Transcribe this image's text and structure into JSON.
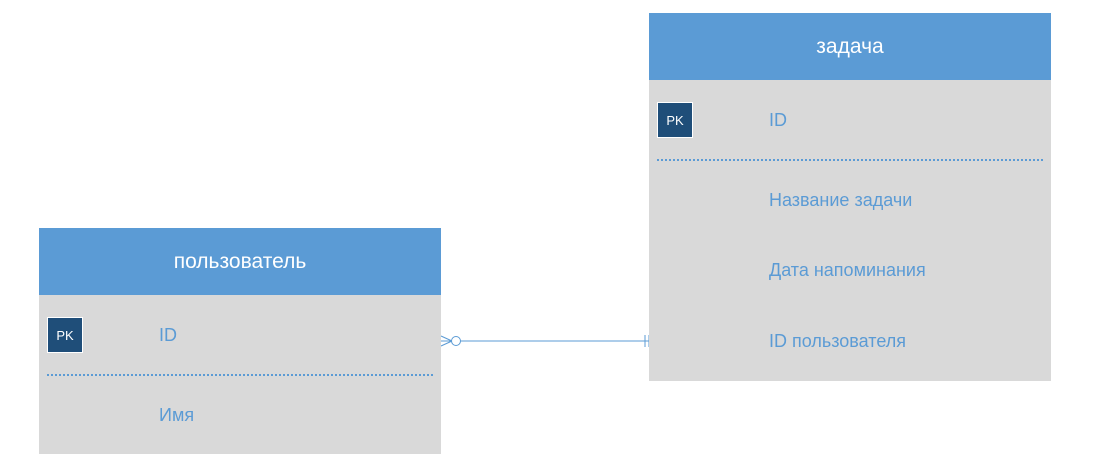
{
  "entities": {
    "user": {
      "title": "пользователь",
      "pk_label": "PK",
      "pk_field": "ID",
      "fields": [
        "Имя"
      ]
    },
    "task": {
      "title": "задача",
      "pk_label": "PK",
      "pk_field": "ID",
      "fields": [
        "Название задачи",
        "Дата напоминания",
        "ID пользователя"
      ]
    }
  },
  "relationship": {
    "from": "пользователь",
    "to": "задача",
    "from_cardinality": "zero-or-many",
    "to_cardinality": "exactly-one"
  },
  "colors": {
    "header": "#5b9bd5",
    "body": "#d9d9d9",
    "pk_badge": "#1f4e79",
    "field_text": "#5b9bd5",
    "connector": "#5b9bd5"
  }
}
